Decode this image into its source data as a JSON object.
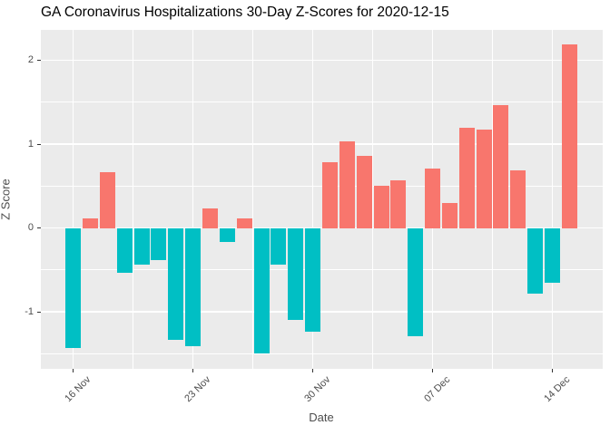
{
  "title": "GA Coronavirus Hospitalizations 30-Day Z-Scores for 2020-12-15",
  "x_axis": {
    "label": "Date",
    "tick_labels": [
      "16 Nov",
      "23 Nov",
      "30 Nov",
      "07 Dec",
      "14 Dec"
    ]
  },
  "y_axis": {
    "label": "Z Score",
    "tick_labels": [
      "2",
      "1",
      "0",
      "-1"
    ],
    "tick_values": [
      2,
      1,
      0,
      -1
    ]
  },
  "colors": {
    "bar_positive": "#F8766D",
    "bar_negative": "#00BFC4",
    "panel_background": "#EBEBEB",
    "gridline": "#FFFFFF",
    "axis_text": "#4D4D4D",
    "tick_mark": "#333333",
    "title_text": "#000000",
    "outer_background": "#FFFFFF"
  },
  "chart_data": {
    "type": "bar",
    "title": "GA Coronavirus Hospitalizations 30-Day Z-Scores for 2020-12-15",
    "xlabel": "Date",
    "ylabel": "Z Score",
    "categories": [
      "16 Nov",
      "17 Nov",
      "18 Nov",
      "19 Nov",
      "20 Nov",
      "21 Nov",
      "22 Nov",
      "23 Nov",
      "24 Nov",
      "25 Nov",
      "26 Nov",
      "27 Nov",
      "28 Nov",
      "29 Nov",
      "30 Nov",
      "01 Dec",
      "02 Dec",
      "03 Dec",
      "04 Dec",
      "05 Dec",
      "06 Dec",
      "07 Dec",
      "08 Dec",
      "09 Dec",
      "10 Dec",
      "11 Dec",
      "12 Dec",
      "13 Dec",
      "14 Dec",
      "15 Dec"
    ],
    "values": [
      -1.43,
      0.12,
      0.67,
      -0.53,
      -0.44,
      -0.38,
      -1.33,
      -1.41,
      0.23,
      -0.17,
      0.12,
      -1.49,
      -0.44,
      -1.09,
      -1.24,
      0.79,
      1.04,
      0.86,
      0.51,
      0.57,
      -1.29,
      0.71,
      0.3,
      1.2,
      1.18,
      1.47,
      0.69,
      -0.78,
      -0.65,
      2.19
    ],
    "ylim": [
      -1.67,
      2.36
    ],
    "y_major_ticks": [
      2,
      1,
      0,
      -1
    ],
    "y_minor_gridlines": [
      1.5,
      0.5,
      -0.5,
      -1.5
    ],
    "x_major_tick_labels": [
      "16 Nov",
      "23 Nov",
      "30 Nov",
      "07 Dec",
      "14 Dec"
    ],
    "x_major_tick_indices": [
      0,
      7,
      14,
      21,
      28
    ],
    "x_minor_gridline_indices": [
      3.5,
      10.5,
      17.5,
      24.5
    ],
    "grid": "white major and minor gridlines on gray panel (ggplot2 style)",
    "legend_position": "none",
    "color_rule": "positive bars salmon #F8766D, negative bars teal #00BFC4"
  }
}
